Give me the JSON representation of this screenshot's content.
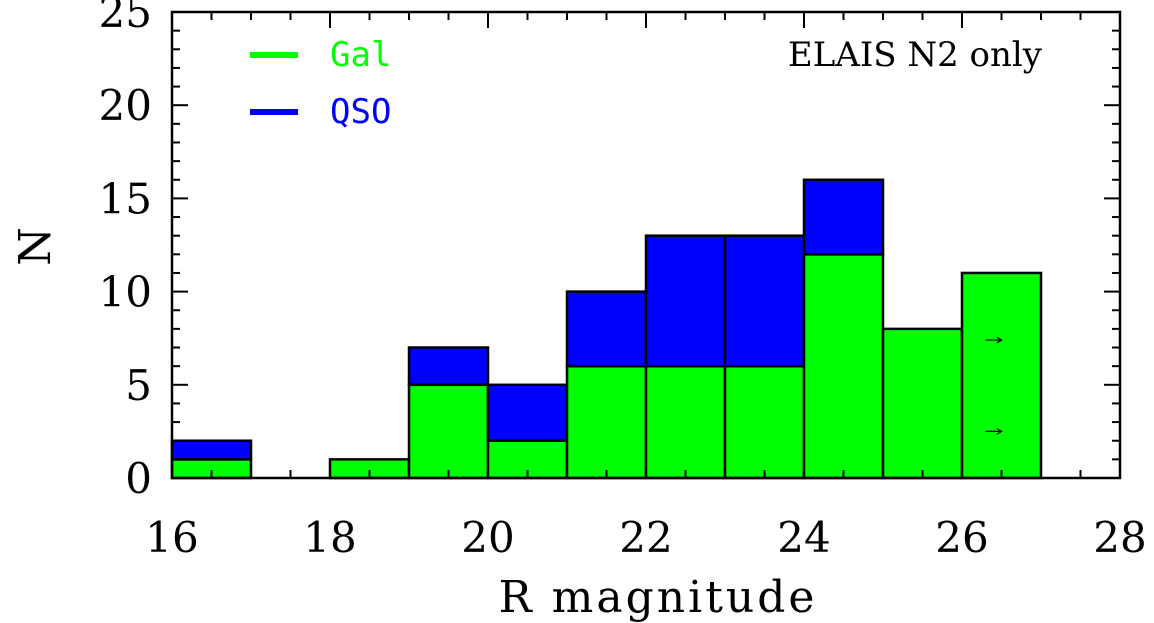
{
  "chart_data": {
    "type": "bar",
    "stacked": true,
    "bins": [
      [
        16,
        17
      ],
      [
        17,
        18
      ],
      [
        18,
        19
      ],
      [
        19,
        20
      ],
      [
        20,
        21
      ],
      [
        21,
        22
      ],
      [
        22,
        23
      ],
      [
        23,
        24
      ],
      [
        24,
        25
      ],
      [
        25,
        26
      ],
      [
        26,
        27
      ]
    ],
    "series": [
      {
        "name": "Gal",
        "color": "#00ff00",
        "values": [
          1,
          0,
          1,
          5,
          2,
          6,
          6,
          6,
          12,
          8,
          11
        ]
      },
      {
        "name": "QSO",
        "color": "#0000ff",
        "values": [
          1,
          0,
          0,
          2,
          3,
          4,
          7,
          7,
          4,
          0,
          0
        ]
      }
    ],
    "xlabel": "R magnitude",
    "ylabel": "N",
    "xlim": [
      16,
      28
    ],
    "ylim": [
      0,
      25
    ],
    "xticks": [
      16,
      18,
      20,
      22,
      24,
      26,
      28
    ],
    "yticks": [
      0,
      5,
      10,
      15,
      20,
      25
    ],
    "x_minor_step": 0.5,
    "y_minor_step": 1,
    "annotation": "ELAIS N2 only",
    "lower_limit_arrows": [
      {
        "x": 26.4,
        "y": 7.4
      },
      {
        "x": 26.4,
        "y": 2.5
      }
    ],
    "legend_position": "top-left",
    "grid": false
  }
}
